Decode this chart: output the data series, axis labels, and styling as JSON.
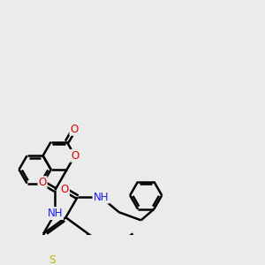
{
  "background_color": "#ebebeb",
  "line_color": "#000000",
  "bond_width": 1.8,
  "atom_colors": {
    "O": "#dd0000",
    "N": "#1a1aee",
    "S": "#bbbb00",
    "H": "#777777",
    "C": "#000000"
  },
  "font_size_atoms": 8.5,
  "figsize": [
    3.0,
    3.0
  ],
  "dpi": 100
}
